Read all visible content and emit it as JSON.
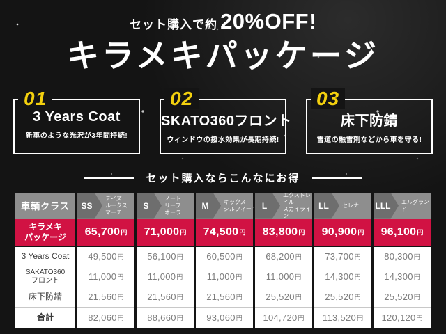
{
  "page": {
    "bg": "#141414",
    "accent_red": "#d11243",
    "accent_yellow": "#f3d00e"
  },
  "header": {
    "offer_prefix": "セット購入で約",
    "offer_highlight": "20%OFF!",
    "title": "キラメキパッケージ"
  },
  "features": [
    {
      "number": "01",
      "title": "3 Years Coat",
      "subtitle": "新車のような光沢が3年間持続!"
    },
    {
      "number": "02",
      "title": "SKATO360フロント",
      "subtitle": "ウィンドウの撥水効果が長期持続!"
    },
    {
      "number": "03",
      "title": "床下防錆",
      "subtitle": "雪道の融雪剤などから車を守る!"
    }
  ],
  "divider": {
    "label": "セット購入ならこんなにお得"
  },
  "table": {
    "corner_label": "車輌クラス",
    "unit": "円",
    "classes": [
      {
        "code": "SS",
        "models": "デイズ\nルークス\nマーチ"
      },
      {
        "code": "S",
        "models": "ノート\nリーフ\nオーラ"
      },
      {
        "code": "M",
        "models": "キックス\nシルフィー"
      },
      {
        "code": "L",
        "models": "エクストレイル\nスカイライン"
      },
      {
        "code": "LL",
        "models": "セレナ"
      },
      {
        "code": "LLL",
        "models": "エルグランド"
      }
    ],
    "rows": [
      {
        "label": "キラメキ\nパッケージ",
        "highlight": true,
        "values": [
          "65,700",
          "71,000",
          "74,500",
          "83,800",
          "90,900",
          "96,100"
        ]
      },
      {
        "label": "3 Years Coat",
        "values": [
          "49,500",
          "56,100",
          "60,500",
          "68,200",
          "73,700",
          "80,300"
        ]
      },
      {
        "label": "SAKATO360\nフロント",
        "values": [
          "11,000",
          "11,000",
          "11,000",
          "11,000",
          "14,300",
          "14,300"
        ]
      },
      {
        "label": "床下防錆",
        "values": [
          "21,560",
          "21,560",
          "21,560",
          "25,520",
          "25,520",
          "25,520"
        ]
      },
      {
        "label": "合計",
        "values": [
          "82,060",
          "88,660",
          "93,060",
          "104,720",
          "113,520",
          "120,120"
        ]
      }
    ]
  }
}
